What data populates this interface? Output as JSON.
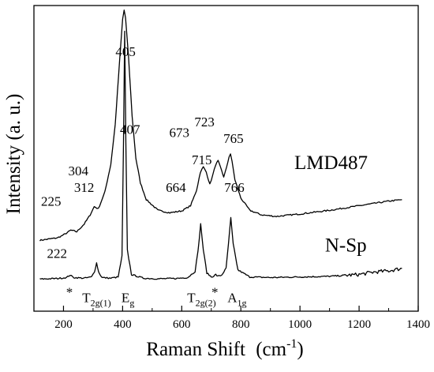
{
  "chart_data": {
    "type": "line",
    "xlabel": "Raman Shift",
    "xlabel_unit_base": "cm",
    "xlabel_unit_exp": "-1",
    "ylabel": "Intensity (a. u.)",
    "xlim": [
      100,
      1400
    ],
    "ylim": [
      0,
      1
    ],
    "xticks": [
      200,
      400,
      600,
      800,
      1000,
      1200,
      1400
    ],
    "y_ticks_shown": false,
    "grid": false,
    "legend": "none",
    "series": [
      {
        "name": "LMD487",
        "x": [
          120,
          180,
          205,
          225,
          245,
          270,
          290,
          304,
          318,
          340,
          360,
          375,
          390,
          400,
          405,
          410,
          420,
          432,
          445,
          460,
          480,
          520,
          560,
          600,
          630,
          650,
          663,
          673,
          683,
          695,
          705,
          715,
          723,
          731,
          742,
          752,
          760,
          765,
          770,
          780,
          800,
          830,
          870,
          920,
          1000,
          1100,
          1200,
          1300,
          1345
        ],
        "y": [
          0.232,
          0.24,
          0.252,
          0.265,
          0.26,
          0.285,
          0.315,
          0.342,
          0.335,
          0.39,
          0.48,
          0.61,
          0.82,
          0.955,
          0.985,
          0.96,
          0.83,
          0.64,
          0.5,
          0.42,
          0.365,
          0.33,
          0.322,
          0.328,
          0.345,
          0.395,
          0.455,
          0.472,
          0.455,
          0.415,
          0.445,
          0.48,
          0.492,
          0.47,
          0.44,
          0.47,
          0.505,
          0.515,
          0.49,
          0.43,
          0.37,
          0.33,
          0.315,
          0.31,
          0.318,
          0.33,
          0.345,
          0.36,
          0.365
        ]
      },
      {
        "name": "N-Sp",
        "x": [
          120,
          180,
          210,
          222,
          235,
          270,
          295,
          305,
          312,
          319,
          330,
          360,
          385,
          398,
          403,
          407,
          411,
          416,
          430,
          470,
          520,
          580,
          620,
          645,
          655,
          664,
          673,
          685,
          700,
          708,
          715,
          722,
          735,
          750,
          758,
          766,
          774,
          790,
          830,
          900,
          1000,
          1100,
          1200,
          1250,
          1300,
          1345
        ],
        "y": [
          0.105,
          0.107,
          0.11,
          0.118,
          0.11,
          0.108,
          0.112,
          0.13,
          0.158,
          0.128,
          0.11,
          0.108,
          0.112,
          0.18,
          0.55,
          0.915,
          0.55,
          0.2,
          0.12,
          0.108,
          0.106,
          0.107,
          0.11,
          0.13,
          0.195,
          0.285,
          0.2,
          0.125,
          0.112,
          0.115,
          0.12,
          0.114,
          0.118,
          0.14,
          0.22,
          0.305,
          0.22,
          0.135,
          0.112,
          0.11,
          0.112,
          0.114,
          0.12,
          0.128,
          0.132,
          0.14
        ]
      }
    ],
    "annotations": [
      {
        "text": "405",
        "x": 410,
        "y": 0.835,
        "series": "LMD487"
      },
      {
        "text": "304",
        "x": 250,
        "y": 0.445,
        "series": "LMD487"
      },
      {
        "text": "225",
        "x": 158,
        "y": 0.345,
        "series": "LMD487"
      },
      {
        "text": "673",
        "x": 592,
        "y": 0.57,
        "series": "LMD487"
      },
      {
        "text": "723",
        "x": 677,
        "y": 0.605,
        "series": "LMD487"
      },
      {
        "text": "765",
        "x": 775,
        "y": 0.55,
        "series": "LMD487"
      },
      {
        "text": "407",
        "x": 425,
        "y": 0.58,
        "series": "N-Sp"
      },
      {
        "text": "312",
        "x": 270,
        "y": 0.39,
        "series": "N-Sp"
      },
      {
        "text": "222",
        "x": 178,
        "y": 0.175,
        "series": "N-Sp"
      },
      {
        "text": "664",
        "x": 580,
        "y": 0.39,
        "series": "N-Sp"
      },
      {
        "text": "715",
        "x": 668,
        "y": 0.48,
        "series": "N-Sp"
      },
      {
        "text": "766",
        "x": 778,
        "y": 0.39,
        "series": "N-Sp"
      }
    ],
    "series_labels": [
      {
        "text": "LMD487",
        "x": 1105,
        "y": 0.465
      },
      {
        "text": "N-Sp",
        "x": 1155,
        "y": 0.195
      }
    ],
    "mode_labels": [
      {
        "base": "*",
        "sub": "",
        "x": 220,
        "y": 0.048
      },
      {
        "base": "T",
        "sub": "2g(1)",
        "x": 312,
        "y": 0.03
      },
      {
        "base": "E",
        "sub": "g",
        "x": 418,
        "y": 0.03
      },
      {
        "base": "T",
        "sub": "2g(2)",
        "x": 667,
        "y": 0.03
      },
      {
        "base": "*",
        "sub": "",
        "x": 712,
        "y": 0.048
      },
      {
        "base": "A",
        "sub": "1g",
        "x": 787,
        "y": 0.03
      }
    ]
  }
}
